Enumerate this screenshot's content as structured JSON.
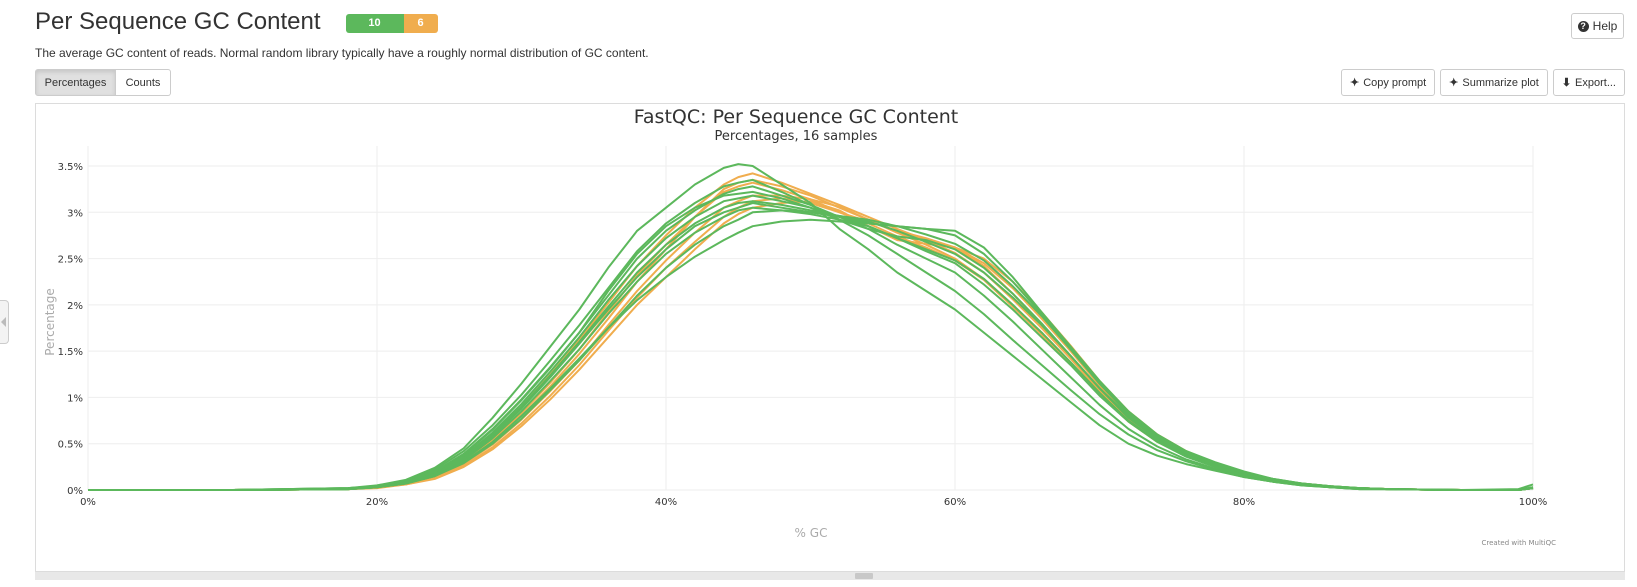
{
  "header": {
    "title": "Per Sequence GC Content",
    "status_pass": "10",
    "status_warn": "6",
    "help_label": "Help",
    "description": "The average GC content of reads. Normal random library typically have a roughly normal distribution of GC content."
  },
  "toolbar": {
    "percentages_label": "Percentages",
    "counts_label": "Counts",
    "copy_prompt_label": "Copy prompt",
    "summarize_label": "Summarize plot",
    "export_label": "Export..."
  },
  "colors": {
    "pass": "#5cb85c",
    "warn": "#f0ad4e",
    "grid": "#eeeeee"
  },
  "credit": "Created with MultiQC",
  "chart_data": {
    "type": "line",
    "title": "FastQC: Per Sequence GC Content",
    "subtitle": "Percentages, 16 samples",
    "xlabel": "% GC",
    "ylabel": "Percentage",
    "xlim": [
      0,
      100
    ],
    "ylim": [
      0,
      3.5
    ],
    "x_ticks": [
      "0%",
      "20%",
      "40%",
      "60%",
      "80%",
      "100%"
    ],
    "y_ticks": [
      "0%",
      "0.5%",
      "1%",
      "1.5%",
      "2%",
      "2.5%",
      "3%",
      "3.5%"
    ],
    "grid": true,
    "x": [
      0,
      10,
      18,
      20,
      22,
      24,
      26,
      28,
      30,
      32,
      34,
      36,
      38,
      40,
      42,
      44,
      45,
      46,
      48,
      50,
      52,
      54,
      56,
      58,
      60,
      62,
      64,
      66,
      68,
      70,
      72,
      74,
      76,
      78,
      80,
      82,
      84,
      86,
      88,
      90,
      95,
      99,
      100
    ],
    "series": [
      {
        "status": "pass",
        "values": [
          0,
          0,
          0.02,
          0.05,
          0.11,
          0.24,
          0.45,
          0.78,
          1.15,
          1.55,
          1.95,
          2.4,
          2.8,
          3.05,
          3.3,
          3.48,
          3.52,
          3.5,
          3.3,
          3.1,
          2.82,
          2.6,
          2.35,
          2.15,
          1.95,
          1.7,
          1.45,
          1.2,
          0.95,
          0.7,
          0.5,
          0.37,
          0.28,
          0.21,
          0.14,
          0.09,
          0.06,
          0.03,
          0.02,
          0.01,
          0,
          0.01,
          0.06
        ]
      },
      {
        "status": "pass",
        "values": [
          0,
          0,
          0.02,
          0.04,
          0.09,
          0.2,
          0.38,
          0.65,
          0.97,
          1.32,
          1.7,
          2.15,
          2.55,
          2.85,
          3.05,
          3.18,
          3.2,
          3.22,
          3.15,
          3.05,
          2.92,
          2.82,
          2.74,
          2.7,
          2.6,
          2.4,
          2.12,
          1.8,
          1.45,
          1.1,
          0.78,
          0.55,
          0.38,
          0.26,
          0.17,
          0.1,
          0.06,
          0.03,
          0.01,
          0.01,
          0,
          0,
          0.03
        ]
      },
      {
        "status": "pass",
        "values": [
          0,
          0,
          0.01,
          0.04,
          0.08,
          0.17,
          0.33,
          0.58,
          0.88,
          1.22,
          1.58,
          1.95,
          2.3,
          2.6,
          2.85,
          3.0,
          3.05,
          3.1,
          3.05,
          3.0,
          2.95,
          2.88,
          2.85,
          2.82,
          2.8,
          2.62,
          2.3,
          1.92,
          1.55,
          1.18,
          0.85,
          0.6,
          0.42,
          0.3,
          0.2,
          0.12,
          0.07,
          0.04,
          0.02,
          0.01,
          0,
          0,
          0.03
        ]
      },
      {
        "status": "pass",
        "values": [
          0,
          0,
          0.01,
          0.03,
          0.07,
          0.15,
          0.3,
          0.52,
          0.8,
          1.1,
          1.42,
          1.75,
          2.05,
          2.3,
          2.52,
          2.7,
          2.78,
          2.85,
          2.9,
          2.92,
          2.9,
          2.88,
          2.85,
          2.82,
          2.75,
          2.55,
          2.25,
          1.9,
          1.52,
          1.15,
          0.82,
          0.58,
          0.4,
          0.28,
          0.18,
          0.11,
          0.07,
          0.04,
          0.02,
          0.01,
          0,
          0,
          0.02
        ]
      },
      {
        "status": "pass",
        "values": [
          0,
          0,
          0.01,
          0.03,
          0.08,
          0.18,
          0.36,
          0.62,
          0.93,
          1.28,
          1.65,
          2.05,
          2.42,
          2.72,
          2.95,
          3.12,
          3.15,
          3.18,
          3.12,
          3.05,
          2.95,
          2.85,
          2.72,
          2.6,
          2.48,
          2.28,
          2.0,
          1.7,
          1.38,
          1.05,
          0.75,
          0.53,
          0.37,
          0.26,
          0.17,
          0.1,
          0.06,
          0.03,
          0.02,
          0.01,
          0,
          0,
          0.02
        ]
      },
      {
        "status": "pass",
        "values": [
          0,
          0,
          0.01,
          0.04,
          0.09,
          0.2,
          0.39,
          0.66,
          0.98,
          1.33,
          1.7,
          2.1,
          2.5,
          2.8,
          3.02,
          3.2,
          3.25,
          3.28,
          3.18,
          3.08,
          2.95,
          2.82,
          2.65,
          2.5,
          2.35,
          2.1,
          1.82,
          1.52,
          1.22,
          0.92,
          0.66,
          0.47,
          0.33,
          0.23,
          0.15,
          0.09,
          0.05,
          0.03,
          0.01,
          0.01,
          0,
          0,
          0.02
        ]
      },
      {
        "status": "pass",
        "values": [
          0,
          0,
          0.01,
          0.03,
          0.07,
          0.16,
          0.32,
          0.56,
          0.85,
          1.18,
          1.52,
          1.9,
          2.25,
          2.55,
          2.78,
          2.95,
          3.02,
          3.05,
          3.02,
          2.98,
          2.92,
          2.85,
          2.72,
          2.58,
          2.45,
          2.22,
          1.95,
          1.65,
          1.35,
          1.02,
          0.74,
          0.52,
          0.36,
          0.25,
          0.16,
          0.1,
          0.06,
          0.03,
          0.02,
          0.01,
          0,
          0,
          0.02
        ]
      },
      {
        "status": "pass",
        "values": [
          0,
          0,
          0.02,
          0.04,
          0.1,
          0.22,
          0.42,
          0.7,
          1.03,
          1.4,
          1.78,
          2.18,
          2.58,
          2.88,
          3.1,
          3.28,
          3.32,
          3.35,
          3.22,
          3.08,
          2.92,
          2.75,
          2.55,
          2.35,
          2.15,
          1.9,
          1.62,
          1.35,
          1.08,
          0.82,
          0.6,
          0.43,
          0.31,
          0.22,
          0.14,
          0.09,
          0.05,
          0.03,
          0.01,
          0.01,
          0,
          0,
          0.02
        ]
      },
      {
        "status": "pass",
        "values": [
          0,
          0,
          0.01,
          0.03,
          0.08,
          0.17,
          0.34,
          0.6,
          0.9,
          1.24,
          1.6,
          1.98,
          2.35,
          2.65,
          2.88,
          3.05,
          3.1,
          3.12,
          3.08,
          3.02,
          2.96,
          2.9,
          2.8,
          2.68,
          2.55,
          2.35,
          2.08,
          1.78,
          1.45,
          1.1,
          0.8,
          0.57,
          0.4,
          0.28,
          0.18,
          0.11,
          0.06,
          0.04,
          0.02,
          0.01,
          0,
          0,
          0.02
        ]
      },
      {
        "status": "pass",
        "values": [
          0,
          0,
          0.01,
          0.03,
          0.07,
          0.15,
          0.29,
          0.5,
          0.77,
          1.08,
          1.4,
          1.75,
          2.1,
          2.4,
          2.65,
          2.85,
          2.92,
          3.0,
          3.02,
          3.0,
          2.96,
          2.92,
          2.85,
          2.76,
          2.66,
          2.48,
          2.2,
          1.88,
          1.52,
          1.15,
          0.83,
          0.59,
          0.41,
          0.29,
          0.19,
          0.12,
          0.07,
          0.04,
          0.02,
          0.01,
          0,
          0,
          0.02
        ]
      },
      {
        "status": "warn",
        "values": [
          0,
          0,
          0.01,
          0.03,
          0.06,
          0.13,
          0.26,
          0.46,
          0.72,
          1.02,
          1.35,
          1.72,
          2.08,
          2.4,
          2.68,
          2.95,
          3.05,
          3.12,
          3.15,
          3.1,
          3.0,
          2.9,
          2.8,
          2.72,
          2.62,
          2.42,
          2.12,
          1.78,
          1.42,
          1.07,
          0.77,
          0.54,
          0.38,
          0.27,
          0.17,
          0.1,
          0.06,
          0.03,
          0.02,
          0.01,
          0,
          0,
          0.02
        ]
      },
      {
        "status": "warn",
        "values": [
          0,
          0,
          0.01,
          0.03,
          0.07,
          0.15,
          0.3,
          0.52,
          0.8,
          1.12,
          1.47,
          1.85,
          2.25,
          2.6,
          2.95,
          3.25,
          3.32,
          3.35,
          3.28,
          3.18,
          3.05,
          2.92,
          2.78,
          2.65,
          2.5,
          2.28,
          2.0,
          1.7,
          1.38,
          1.05,
          0.76,
          0.54,
          0.38,
          0.27,
          0.17,
          0.1,
          0.06,
          0.03,
          0.02,
          0.01,
          0,
          0,
          0.02
        ]
      },
      {
        "status": "warn",
        "values": [
          0,
          0,
          0.01,
          0.03,
          0.08,
          0.17,
          0.34,
          0.6,
          0.9,
          1.25,
          1.62,
          2.02,
          2.42,
          2.75,
          3.05,
          3.3,
          3.38,
          3.42,
          3.32,
          3.2,
          3.08,
          2.95,
          2.82,
          2.7,
          2.56,
          2.35,
          2.06,
          1.75,
          1.42,
          1.08,
          0.78,
          0.55,
          0.39,
          0.27,
          0.17,
          0.1,
          0.06,
          0.03,
          0.02,
          0.01,
          0,
          0,
          0.02
        ]
      },
      {
        "status": "warn",
        "values": [
          0,
          0,
          0.01,
          0.02,
          0.06,
          0.12,
          0.25,
          0.44,
          0.69,
          0.98,
          1.3,
          1.65,
          2.0,
          2.3,
          2.6,
          2.88,
          2.98,
          3.05,
          3.1,
          3.12,
          3.02,
          2.85,
          2.7,
          2.66,
          2.62,
          2.5,
          2.25,
          1.92,
          1.56,
          1.18,
          0.85,
          0.6,
          0.42,
          0.29,
          0.19,
          0.11,
          0.07,
          0.04,
          0.02,
          0.01,
          0,
          0,
          0.02
        ]
      },
      {
        "status": "warn",
        "values": [
          0,
          0,
          0.01,
          0.03,
          0.06,
          0.14,
          0.28,
          0.49,
          0.76,
          1.07,
          1.4,
          1.78,
          2.15,
          2.48,
          2.78,
          3.05,
          3.12,
          3.18,
          3.18,
          3.14,
          3.06,
          2.92,
          2.78,
          2.7,
          2.62,
          2.45,
          2.18,
          1.85,
          1.5,
          1.13,
          0.81,
          0.57,
          0.4,
          0.28,
          0.18,
          0.11,
          0.06,
          0.03,
          0.02,
          0.01,
          0,
          0,
          0.02
        ]
      },
      {
        "status": "warn",
        "values": [
          0,
          0,
          0.01,
          0.03,
          0.07,
          0.16,
          0.31,
          0.54,
          0.83,
          1.16,
          1.52,
          1.92,
          2.32,
          2.65,
          2.95,
          3.22,
          3.28,
          3.32,
          3.24,
          3.14,
          3.0,
          2.88,
          2.74,
          2.62,
          2.48,
          2.27,
          1.98,
          1.68,
          1.36,
          1.03,
          0.74,
          0.52,
          0.37,
          0.26,
          0.16,
          0.1,
          0.06,
          0.03,
          0.02,
          0.01,
          0,
          0,
          0.02
        ]
      }
    ]
  }
}
